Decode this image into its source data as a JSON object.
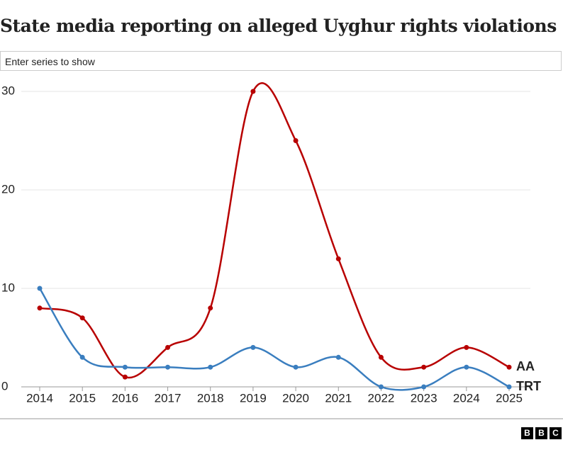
{
  "chart_data": {
    "type": "line",
    "title": "State media reporting on alleged Uyghur rights violations",
    "x": [
      2014,
      2015,
      2016,
      2017,
      2018,
      2019,
      2020,
      2021,
      2022,
      2023,
      2024,
      2025
    ],
    "series": [
      {
        "name": "AA",
        "color": "#b80000",
        "values": [
          8,
          7,
          1,
          4,
          8,
          30,
          25,
          13,
          3,
          2,
          4,
          2
        ]
      },
      {
        "name": "TRT",
        "color": "#3a7ebf",
        "values": [
          10,
          3,
          2,
          2,
          2,
          4,
          2,
          3,
          0,
          0,
          2,
          0
        ]
      }
    ],
    "xlim": [
      2014,
      2025
    ],
    "xticks": [
      2014,
      2015,
      2016,
      2017,
      2018,
      2019,
      2020,
      2021,
      2022,
      2023,
      2024,
      2025
    ],
    "ylim": [
      0,
      30
    ],
    "yticks": [
      0,
      10,
      20,
      30
    ],
    "grid": true
  },
  "controls": {
    "series_input": "Enter series to show"
  },
  "footer": {
    "logo": [
      "B",
      "B",
      "C"
    ]
  }
}
